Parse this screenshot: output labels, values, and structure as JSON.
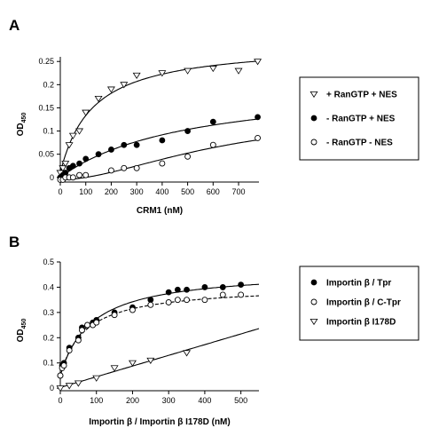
{
  "chart_data": [
    {
      "panel": "A",
      "type": "scatter",
      "xlabel": "CRM1 (nM)",
      "ylabel_main": "OD",
      "ylabel_sub": "450",
      "xlim": [
        0,
        780
      ],
      "ylim": [
        -0.01,
        0.26
      ],
      "xticks": [
        0,
        100,
        200,
        300,
        400,
        500,
        600,
        700
      ],
      "yticks": [
        0,
        0.05,
        0.1,
        0.15,
        0.2,
        0.25
      ],
      "ytick_labels": [
        "0",
        "0.05",
        "0.1",
        "0.15",
        "0.2",
        "0.25"
      ],
      "legend_position": "right",
      "series": [
        {
          "name": "+ RanGTP + NES",
          "marker": "triangle-down-open",
          "x": [
            0,
            10,
            20,
            35,
            50,
            75,
            100,
            150,
            200,
            250,
            300,
            400,
            500,
            600,
            700,
            775
          ],
          "y": [
            0.01,
            0.02,
            0.03,
            0.07,
            0.09,
            0.1,
            0.14,
            0.17,
            0.19,
            0.2,
            0.22,
            0.225,
            0.23,
            0.235,
            0.23,
            0.25
          ],
          "fit": "hyperbolic"
        },
        {
          "name": "- RanGTP + NES",
          "marker": "circle-filled",
          "x": [
            0,
            10,
            20,
            35,
            50,
            75,
            100,
            150,
            200,
            250,
            300,
            400,
            500,
            600,
            775
          ],
          "y": [
            0,
            0.005,
            0.01,
            0.02,
            0.025,
            0.03,
            0.04,
            0.05,
            0.06,
            0.07,
            0.07,
            0.08,
            0.1,
            0.12,
            0.13
          ],
          "fit": "hyperbolic"
        },
        {
          "name": "- RanGTP - NES",
          "marker": "circle-open",
          "x": [
            0,
            10,
            20,
            35,
            50,
            75,
            100,
            200,
            250,
            300,
            400,
            500,
            600,
            775
          ],
          "y": [
            -0.005,
            -0.005,
            0,
            0,
            0,
            0.005,
            0.005,
            0.015,
            0.02,
            0.02,
            0.03,
            0.045,
            0.07,
            0.085
          ],
          "fit": "sigmoid"
        }
      ]
    },
    {
      "panel": "B",
      "type": "scatter",
      "xlabel": "Importin β / Importin β I178D (nM)",
      "ylabel_main": "OD",
      "ylabel_sub": "450",
      "xlim": [
        0,
        550
      ],
      "ylim": [
        -0.01,
        0.5
      ],
      "xticks": [
        0,
        100,
        200,
        300,
        400,
        500
      ],
      "yticks": [
        0,
        0.1,
        0.2,
        0.3,
        0.4,
        0.5
      ],
      "ytick_labels": [
        "0",
        "0.1",
        "0.2",
        "0.3",
        "0.4",
        "0.5"
      ],
      "legend_position": "right",
      "series": [
        {
          "name": "Importin β / Tpr",
          "marker": "circle-filled",
          "x": [
            0,
            5,
            10,
            25,
            50,
            60,
            75,
            90,
            100,
            150,
            200,
            250,
            300,
            325,
            350,
            400,
            450,
            500
          ],
          "y": [
            0.05,
            0.09,
            0.1,
            0.16,
            0.2,
            0.24,
            0.25,
            0.26,
            0.27,
            0.3,
            0.32,
            0.35,
            0.38,
            0.39,
            0.39,
            0.4,
            0.4,
            0.41
          ],
          "fit": "hyperbolic"
        },
        {
          "name": "Importin β / C-Tpr",
          "marker": "circle-open",
          "x": [
            0,
            5,
            10,
            25,
            50,
            60,
            75,
            90,
            100,
            150,
            200,
            250,
            300,
            325,
            350,
            400,
            450,
            500
          ],
          "y": [
            0.05,
            0.08,
            0.09,
            0.15,
            0.19,
            0.23,
            0.25,
            0.25,
            0.26,
            0.29,
            0.31,
            0.33,
            0.34,
            0.35,
            0.35,
            0.35,
            0.37,
            0.37
          ],
          "fit": "hyperbolic"
        },
        {
          "name": "Importin β I178D",
          "marker": "triangle-down-open",
          "x": [
            0,
            25,
            50,
            100,
            150,
            200,
            250,
            350
          ],
          "y": [
            0,
            0.01,
            0.02,
            0.04,
            0.08,
            0.1,
            0.11,
            0.14
          ],
          "fit": "linear"
        }
      ]
    }
  ]
}
